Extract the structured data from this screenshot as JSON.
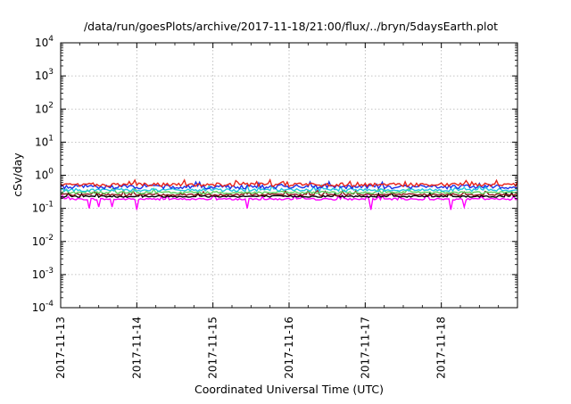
{
  "chart_data": {
    "type": "line",
    "title": "/data/run/goesPlots/archive/2017-11-18/21:00/flux/../bryn/5daysEarth.plot",
    "xlabel": "Coordinated Universal Time (UTC)",
    "ylabel": "cSv/day",
    "xlim": [
      "2017-11-13",
      "2017-11-19"
    ],
    "ylim": [
      0.0001,
      10000
    ],
    "yscale": "log",
    "grid": true,
    "x_ticks": [
      "2017-11-13",
      "2017-11-14",
      "2017-11-15",
      "2017-11-16",
      "2017-11-17",
      "2017-11-18"
    ],
    "y_ticks": [
      {
        "value": 0.0001,
        "base": "10",
        "exp": "-4"
      },
      {
        "value": 0.001,
        "base": "10",
        "exp": "-3"
      },
      {
        "value": 0.01,
        "base": "10",
        "exp": "-2"
      },
      {
        "value": 0.1,
        "base": "10",
        "exp": "-1"
      },
      {
        "value": 1,
        "base": "10",
        "exp": "0"
      },
      {
        "value": 10,
        "base": "10",
        "exp": "1"
      },
      {
        "value": 100,
        "base": "10",
        "exp": "2"
      },
      {
        "value": 1000,
        "base": "10",
        "exp": "3"
      },
      {
        "value": 10000,
        "base": "10",
        "exp": "4"
      }
    ],
    "series": [
      {
        "color": "#e8241a",
        "level": 0.52,
        "spread": 0.12
      },
      {
        "color": "#1a30e8",
        "level": 0.45,
        "spread": 0.14
      },
      {
        "color": "#21c6e0",
        "level": 0.36,
        "spread": 0.1
      },
      {
        "color": "#5fd35f",
        "level": 0.3,
        "spread": 0.08
      },
      {
        "color": "#8b1a1a",
        "level": 0.26,
        "spread": 0.07
      },
      {
        "color": "#000000",
        "level": 0.23,
        "spread": 0.06
      },
      {
        "color": "#ff00ff",
        "level": 0.19,
        "spread": 0.06
      }
    ],
    "dips": [
      {
        "x": "2017-11-13T09:00",
        "depth": 0.1
      },
      {
        "x": "2017-11-13T12:00",
        "depth": 0.11
      },
      {
        "x": "2017-11-13T16:00",
        "depth": 0.11
      },
      {
        "x": "2017-11-14T00:00",
        "depth": 0.09
      },
      {
        "x": "2017-11-15T11:00",
        "depth": 0.1
      },
      {
        "x": "2017-11-17T02:00",
        "depth": 0.09
      },
      {
        "x": "2017-11-18T03:00",
        "depth": 0.09
      },
      {
        "x": "2017-11-18T07:00",
        "depth": 0.11
      }
    ]
  }
}
